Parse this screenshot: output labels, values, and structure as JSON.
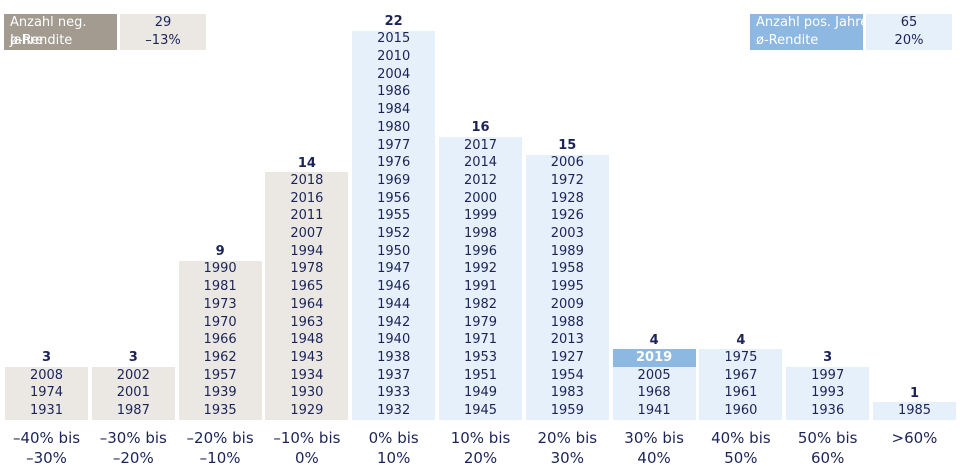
{
  "legend": {
    "negative": {
      "label1": "Anzahl neg. Jahre",
      "label2": "ø-Rendite",
      "count": "29",
      "return": "–13%",
      "color": "#a39a90",
      "bg": "#ebe8e4"
    },
    "positive": {
      "label1": "Anzahl pos. Jahre",
      "label2": "ø-Rendite",
      "count": "65",
      "return": "20%",
      "color": "#8db8e1",
      "bg": "#e6f0fa"
    }
  },
  "chart_data": {
    "type": "bar",
    "title": "",
    "xlabel": "",
    "ylabel": "",
    "categories": [
      "–40% bis –30%",
      "–30% bis –20%",
      "–20% bis –10%",
      "–10% bis 0%",
      "0% bis 10%",
      "10% bis 20%",
      "20% bis 30%",
      "30% bis 40%",
      "40% bis 50%",
      "50% bis 60%",
      ">60%"
    ],
    "category_lines": [
      [
        "–40% bis",
        "–30%"
      ],
      [
        "–30% bis",
        "–20%"
      ],
      [
        "–20% bis",
        "–10%"
      ],
      [
        "–10% bis",
        "0%"
      ],
      [
        "0% bis",
        "10%"
      ],
      [
        "10% bis",
        "20%"
      ],
      [
        "20% bis",
        "30%"
      ],
      [
        "30% bis",
        "40%"
      ],
      [
        "40% bis",
        "50%"
      ],
      [
        "50% bis",
        "60%"
      ],
      [
        ">60%",
        ""
      ]
    ],
    "values": [
      3,
      3,
      9,
      14,
      22,
      16,
      15,
      4,
      4,
      3,
      1
    ],
    "highlight_year": "2019",
    "years": [
      [
        "1931",
        "1974",
        "2008"
      ],
      [
        "1987",
        "2001",
        "2002"
      ],
      [
        "1935",
        "1939",
        "1957",
        "1962",
        "1966",
        "1970",
        "1973",
        "1981",
        "1990"
      ],
      [
        "1929",
        "1930",
        "1934",
        "1943",
        "1948",
        "1963",
        "1964",
        "1965",
        "1978",
        "1994",
        "2007",
        "2011",
        "2016",
        "2018"
      ],
      [
        "1932",
        "1933",
        "1937",
        "1938",
        "1940",
        "1942",
        "1944",
        "1946",
        "1947",
        "1950",
        "1952",
        "1955",
        "1956",
        "1969",
        "1976",
        "1977",
        "1980",
        "1984",
        "1986",
        "2004",
        "2010",
        "2015"
      ],
      [
        "1945",
        "1949",
        "1951",
        "1953",
        "1971",
        "1979",
        "1982",
        "1991",
        "1992",
        "1996",
        "1998",
        "1999",
        "2000",
        "2012",
        "2014",
        "2017"
      ],
      [
        "1959",
        "1983",
        "1954",
        "1927",
        "2013",
        "1988",
        "2009",
        "1995",
        "1958",
        "1989",
        "2003",
        "1926",
        "1928",
        "1972",
        "2006"
      ],
      [
        "1941",
        "1968",
        "2005",
        "2019"
      ],
      [
        "1960",
        "1961",
        "1967",
        "1975"
      ],
      [
        "1936",
        "1993",
        "1997"
      ],
      [
        "1985"
      ]
    ]
  }
}
